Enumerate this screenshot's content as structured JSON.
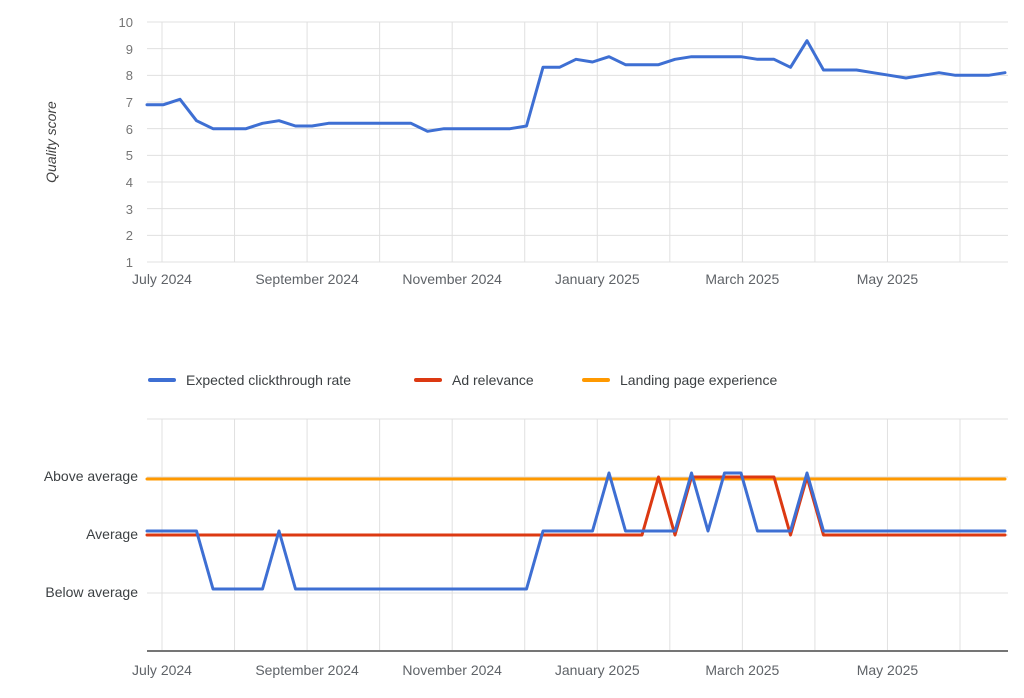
{
  "chart_data": [
    {
      "type": "line",
      "title": "",
      "ylabel": "Quality score",
      "xlabel": "",
      "grid": true,
      "legend_position": "none",
      "ylim": [
        1,
        10
      ],
      "y_ticks": [
        1,
        2,
        3,
        4,
        5,
        6,
        7,
        8,
        9,
        10
      ],
      "x_tick_labels": [
        "July 2024",
        "September 2024",
        "November 2024",
        "January 2025",
        "March 2025",
        "May 2025"
      ],
      "x_description": "weekly points, July 2024 - June 2025",
      "series": [
        {
          "name": "Quality score",
          "color": "#3e6fd3",
          "values": [
            6.9,
            6.9,
            7.1,
            6.3,
            6.0,
            6.0,
            6.0,
            6.2,
            6.3,
            6.1,
            6.1,
            6.2,
            6.2,
            6.2,
            6.2,
            6.2,
            6.2,
            5.9,
            6.0,
            6.0,
            6.0,
            6.0,
            6.0,
            6.1,
            8.3,
            8.3,
            8.6,
            8.5,
            8.7,
            8.4,
            8.4,
            8.4,
            8.6,
            8.7,
            8.7,
            8.7,
            8.7,
            8.6,
            8.6,
            8.3,
            9.3,
            8.2,
            8.2,
            8.2,
            8.1,
            8.0,
            7.9,
            8.0,
            8.1,
            8.0,
            8.0,
            8.0,
            8.1
          ]
        }
      ]
    },
    {
      "type": "line",
      "title": "",
      "ylabel": "",
      "xlabel": "",
      "grid": true,
      "legend_position": "top",
      "y_category_labels": [
        "Above average",
        "Average",
        "Below average"
      ],
      "value_scale": {
        "3": "Above average",
        "2": "Average",
        "1": "Below average"
      },
      "x_tick_labels": [
        "July 2024",
        "September 2024",
        "November 2024",
        "January 2025",
        "March 2025",
        "May 2025"
      ],
      "x_description": "weekly points, July 2024 - June 2025",
      "series": [
        {
          "name": "Expected clickthrough rate",
          "color": "#3e6fd3",
          "values": [
            2,
            2,
            2,
            2,
            1,
            1,
            1,
            1,
            2,
            1,
            1,
            1,
            1,
            1,
            1,
            1,
            1,
            1,
            1,
            1,
            1,
            1,
            1,
            1,
            2,
            2,
            2,
            2,
            3,
            2,
            2,
            2,
            2,
            3,
            2,
            3,
            3,
            2,
            2,
            2,
            3,
            2,
            2,
            2,
            2,
            2,
            2,
            2,
            2,
            2,
            2,
            2,
            2
          ]
        },
        {
          "name": "Ad relevance",
          "color": "#dc3912",
          "values": [
            2,
            2,
            2,
            2,
            2,
            2,
            2,
            2,
            2,
            2,
            2,
            2,
            2,
            2,
            2,
            2,
            2,
            2,
            2,
            2,
            2,
            2,
            2,
            2,
            2,
            2,
            2,
            2,
            2,
            2,
            2,
            3,
            2,
            3,
            3,
            3,
            3,
            3,
            3,
            2,
            3,
            2,
            2,
            2,
            2,
            2,
            2,
            2,
            2,
            2,
            2,
            2,
            2
          ]
        },
        {
          "name": "Landing page experience",
          "color": "#ff9900",
          "values": [
            3,
            3,
            3,
            3,
            3,
            3,
            3,
            3,
            3,
            3,
            3,
            3,
            3,
            3,
            3,
            3,
            3,
            3,
            3,
            3,
            3,
            3,
            3,
            3,
            3,
            3,
            3,
            3,
            3,
            3,
            3,
            3,
            3,
            3,
            3,
            3,
            3,
            3,
            3,
            3,
            3,
            3,
            3,
            3,
            3,
            3,
            3,
            3,
            3,
            3,
            3,
            3,
            3
          ]
        }
      ]
    }
  ]
}
